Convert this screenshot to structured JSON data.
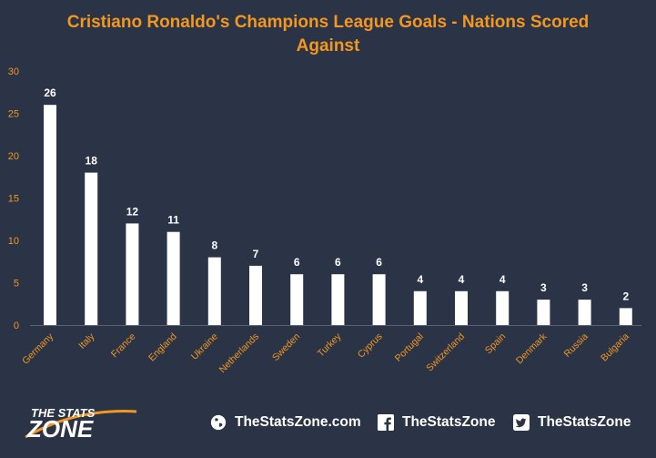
{
  "chart_data": {
    "type": "bar",
    "title_line1": "Cristiano Ronaldo's Champions League Goals - Nations Scored",
    "title_line2": "Against",
    "categories": [
      "Germany",
      "Italy",
      "France",
      "England",
      "Ukraine",
      "Netherlands",
      "Sweden",
      "Turkey",
      "Cyprus",
      "Portugal",
      "Switzerland",
      "Spain",
      "Denmark",
      "Russia",
      "Bulgaria"
    ],
    "values": [
      26,
      18,
      12,
      11,
      8,
      7,
      6,
      6,
      6,
      4,
      4,
      4,
      3,
      3,
      2
    ],
    "ylim": [
      0,
      30
    ],
    "yticks": [
      "0",
      "5",
      "10",
      "15",
      "20",
      "25",
      "30"
    ],
    "bar_color": "#ffffff",
    "label_color": "#f3971f",
    "grid": false
  },
  "footer": {
    "logo_top": "THE STATS",
    "logo_bottom": "ZONE",
    "website": "TheStatsZone.com",
    "facebook": "TheStatsZone",
    "twitter": "TheStatsZone"
  },
  "colors": {
    "background": "#2b3347",
    "accent": "#f3971f",
    "text": "#ffffff"
  }
}
